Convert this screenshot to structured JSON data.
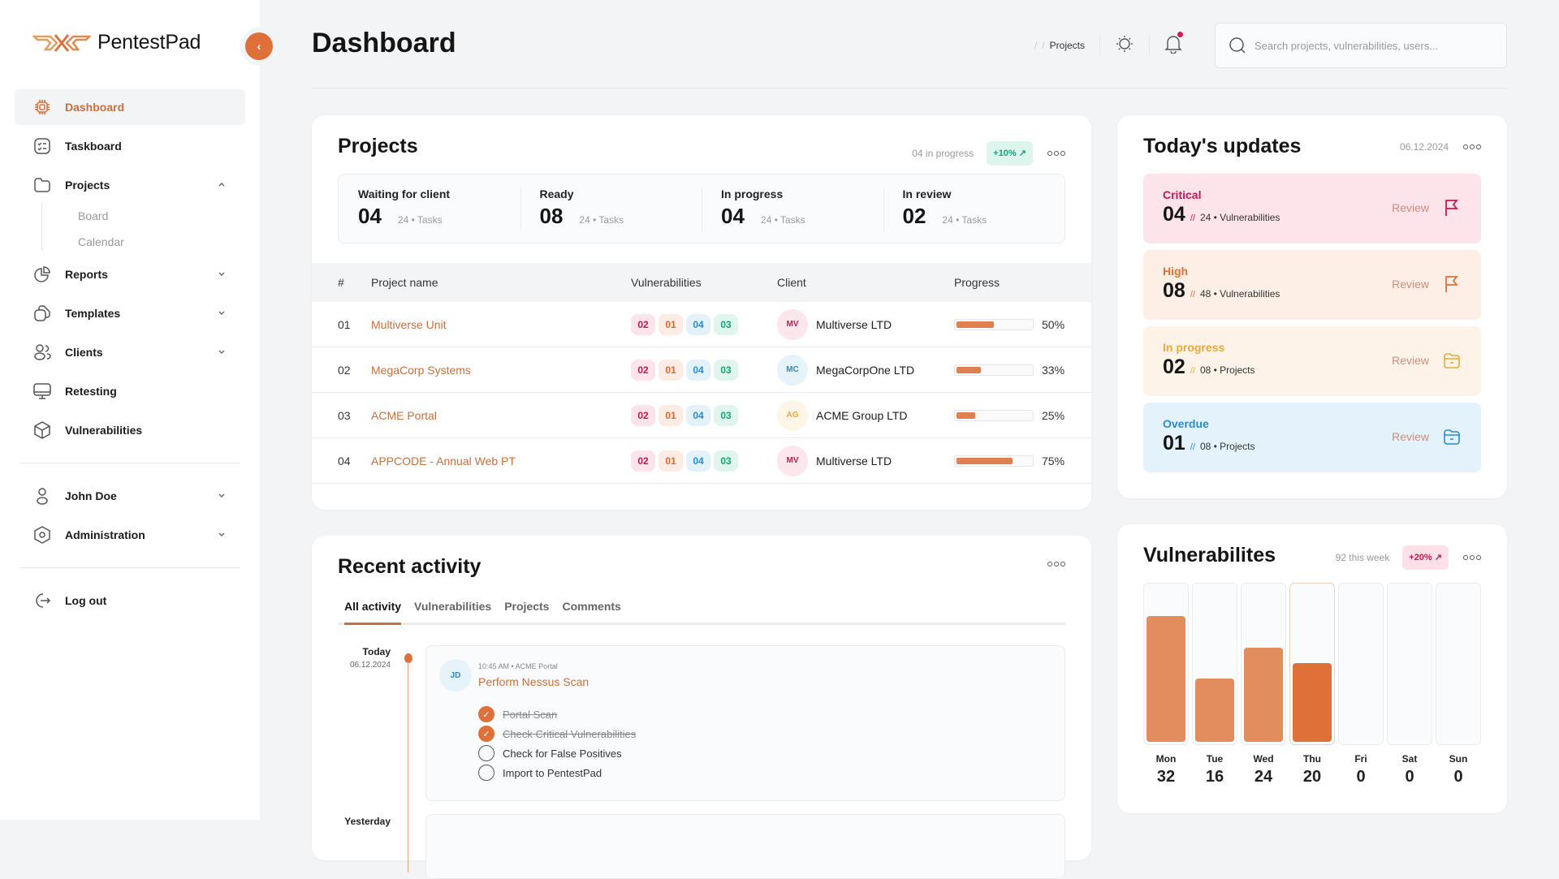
{
  "app": {
    "name": "PentestPad",
    "page_title": "Dashboard"
  },
  "sidebar": {
    "collapse_icon": "chevron-left-icon",
    "items": [
      {
        "label": "Dashboard",
        "icon": "chip-icon",
        "active": true
      },
      {
        "label": "Taskboard",
        "icon": "checklist-icon"
      },
      {
        "label": "Projects",
        "icon": "folder-icon",
        "expanded": true,
        "children": [
          "Board",
          "Calendar"
        ]
      },
      {
        "label": "Reports",
        "icon": "pie-chart-icon"
      },
      {
        "label": "Templates",
        "icon": "documents-icon"
      },
      {
        "label": "Clients",
        "icon": "users-icon"
      },
      {
        "label": "Retesting",
        "icon": "monitor-icon"
      },
      {
        "label": "Vulnerabilities",
        "icon": "cube-icon"
      }
    ],
    "user_items": [
      {
        "label": "John Doe",
        "icon": "user-icon"
      },
      {
        "label": "Administration",
        "icon": "settings-hex-icon"
      }
    ],
    "logout": {
      "label": "Log out",
      "icon": "logout-icon"
    }
  },
  "topbar": {
    "breadcrumb": [
      "Projects"
    ],
    "search_placeholder": "Search projects, vulnerabilities, users..."
  },
  "projects": {
    "title": "Projects",
    "in_progress_text": "04 in progress",
    "trend": "+10%",
    "statuses": [
      {
        "label": "Waiting for client",
        "count": "04",
        "sub": "24 • Tasks"
      },
      {
        "label": "Ready",
        "count": "08",
        "sub": "24 • Tasks"
      },
      {
        "label": "In progress",
        "count": "04",
        "sub": "24 • Tasks"
      },
      {
        "label": "In review",
        "count": "02",
        "sub": "24 • Tasks"
      }
    ],
    "columns": [
      "#",
      "Project name",
      "Vulnerabilities",
      "Client",
      "Progress"
    ],
    "rows": [
      {
        "num": "01",
        "name": "Multiverse Unit",
        "vulns": [
          "02",
          "01",
          "04",
          "03"
        ],
        "client_initials": "MV",
        "client": "Multiverse LTD",
        "progress": 50,
        "progress_label": "50%"
      },
      {
        "num": "02",
        "name": "MegaCorp Systems",
        "vulns": [
          "02",
          "01",
          "04",
          "03"
        ],
        "client_initials": "MC",
        "client": "MegaCorpOne LTD",
        "progress": 33,
        "progress_label": "33%"
      },
      {
        "num": "03",
        "name": "ACME Portal",
        "vulns": [
          "02",
          "01",
          "04",
          "03"
        ],
        "client_initials": "AG",
        "client": "ACME Group LTD",
        "progress": 25,
        "progress_label": "25%"
      },
      {
        "num": "04",
        "name": "APPCODE - Annual Web PT",
        "vulns": [
          "02",
          "01",
          "04",
          "03"
        ],
        "client_initials": "MV",
        "client": "Multiverse LTD",
        "progress": 75,
        "progress_label": "75%"
      }
    ]
  },
  "updates": {
    "title": "Today's updates",
    "date": "06.12.2024",
    "items": [
      {
        "label": "Critical",
        "count": "04",
        "sub": "24 • Vulnerabilities",
        "action": "Review",
        "icon": "flag-icon",
        "color": "#c8174e",
        "bg": "#fce4ea"
      },
      {
        "label": "High",
        "count": "08",
        "sub": "48 • Vulnerabilities",
        "action": "Review",
        "icon": "flag-icon",
        "color": "#d9733b",
        "bg": "#fdefe6"
      },
      {
        "label": "In progress",
        "count": "02",
        "sub": "08 • Projects",
        "action": "Review",
        "icon": "folder-open-icon",
        "color": "#e9a93c",
        "bg": "#fdf3e8"
      },
      {
        "label": "Overdue",
        "count": "01",
        "sub": "08 • Projects",
        "action": "Review",
        "icon": "folder-open-icon",
        "color": "#2a8bcc",
        "bg": "#e4f2fb"
      }
    ]
  },
  "activity": {
    "title": "Recent activity",
    "tabs": [
      "All activity",
      "Vulnerabilities",
      "Projects",
      "Comments"
    ],
    "groups": [
      {
        "day": "Today",
        "date": "06.12.2024",
        "entry": {
          "initials": "JD",
          "meta": "10:45 AM • ACME Portal",
          "title": "Perform Nessus Scan",
          "checklist": [
            {
              "text": "Portal Scan",
              "done": true
            },
            {
              "text": "Check Critical Vulnerabilities",
              "done": true
            },
            {
              "text": "Check for False Positives",
              "done": false
            },
            {
              "text": "Import to PentestPad",
              "done": false
            }
          ]
        }
      },
      {
        "day": "Yesterday"
      }
    ]
  },
  "vulnerabilities": {
    "title": "Vulnerabilites",
    "week_text": "92 this week",
    "trend": "+20%",
    "highlight_day": "Thu"
  },
  "chart_data": {
    "type": "bar",
    "title": "Vulnerabilites",
    "categories": [
      "Mon",
      "Tue",
      "Wed",
      "Thu",
      "Fri",
      "Sat",
      "Sun"
    ],
    "values": [
      32,
      16,
      24,
      20,
      0,
      0,
      0
    ],
    "xlabel": "",
    "ylabel": "",
    "ylim": [
      0,
      40
    ],
    "grid": false
  }
}
